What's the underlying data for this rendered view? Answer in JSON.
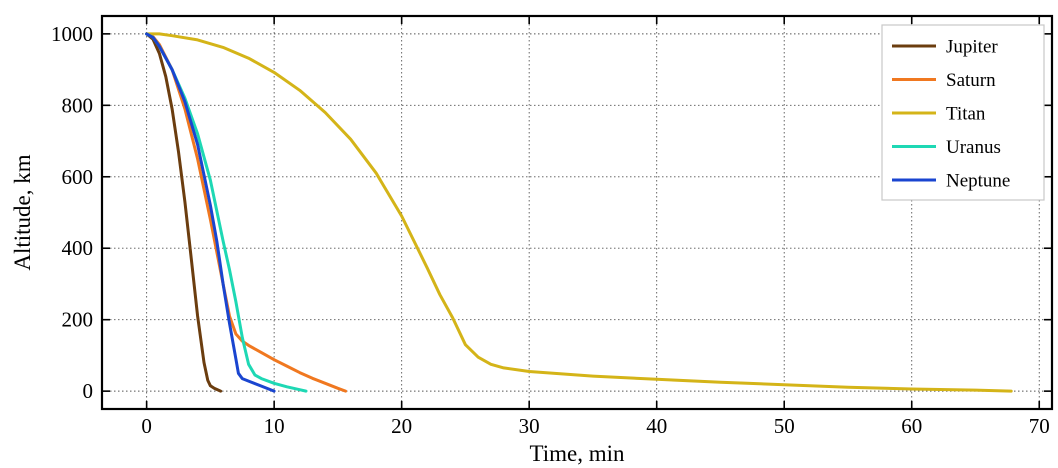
{
  "chart_data": {
    "type": "line",
    "title": "",
    "xlabel": "Time, min",
    "ylabel": "Altitude, km",
    "xlim": [
      -3.5,
      71
    ],
    "ylim": [
      -50,
      1050
    ],
    "xticks": [
      0,
      10,
      20,
      30,
      40,
      50,
      60,
      70
    ],
    "yticks": [
      0,
      200,
      400,
      600,
      800,
      1000
    ],
    "grid": true,
    "legend_position": "top-right",
    "series": [
      {
        "name": "Jupiter",
        "color": "#6b3d0f",
        "x": [
          0,
          0.5,
          1.0,
          1.5,
          2.0,
          2.5,
          3.0,
          3.5,
          4.0,
          4.5,
          4.8,
          5.0,
          5.3,
          5.8
        ],
        "y": [
          1000,
          985,
          945,
          880,
          790,
          670,
          530,
          370,
          210,
          80,
          30,
          15,
          8,
          0
        ]
      },
      {
        "name": "Saturn",
        "color": "#f07820",
        "x": [
          0,
          0.5,
          1.0,
          2.0,
          3.0,
          4.0,
          5.0,
          6.0,
          6.5,
          7.0,
          7.5,
          8.0,
          9.0,
          10.0,
          11.0,
          12.0,
          13.0,
          14.0,
          15.0,
          15.6
        ],
        "y": [
          1000,
          992,
          970,
          900,
          790,
          650,
          480,
          300,
          210,
          160,
          140,
          128,
          108,
          88,
          70,
          52,
          36,
          22,
          8,
          0
        ]
      },
      {
        "name": "Titan",
        "color": "#d4b418",
        "x": [
          0,
          1,
          2,
          4,
          6,
          8,
          10,
          12,
          14,
          16,
          18,
          20,
          22,
          23,
          24,
          25,
          26,
          27,
          28,
          30,
          35,
          40,
          45,
          50,
          55,
          60,
          65,
          67.8
        ],
        "y": [
          1000,
          1000,
          995,
          983,
          962,
          932,
          892,
          842,
          780,
          705,
          610,
          490,
          345,
          270,
          205,
          130,
          95,
          75,
          65,
          55,
          42,
          33,
          25,
          18,
          11,
          6,
          3,
          0
        ]
      },
      {
        "name": "Uranus",
        "color": "#1ed8b4",
        "x": [
          0,
          0.5,
          1.0,
          2.0,
          3.0,
          4.0,
          5.0,
          6.0,
          6.5,
          7.0,
          7.5,
          8.0,
          8.5,
          9.0,
          10.0,
          11.0,
          12.0,
          12.5
        ],
        "y": [
          1000,
          990,
          965,
          900,
          820,
          720,
          590,
          420,
          340,
          250,
          150,
          75,
          45,
          35,
          22,
          12,
          4,
          0
        ]
      },
      {
        "name": "Neptune",
        "color": "#1a45d0",
        "x": [
          0,
          0.5,
          1.0,
          2.0,
          3.0,
          4.0,
          5.0,
          5.5,
          6.0,
          6.5,
          7.0,
          7.2,
          7.5,
          8.0,
          9.0,
          10.0
        ],
        "y": [
          1000,
          990,
          965,
          900,
          810,
          690,
          520,
          420,
          300,
          190,
          90,
          50,
          35,
          28,
          14,
          0
        ]
      }
    ]
  }
}
